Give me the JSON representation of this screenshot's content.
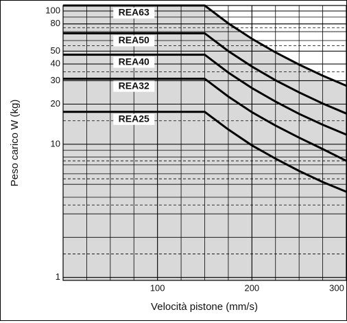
{
  "chart_data": {
    "type": "line",
    "log_y": true,
    "grid": true,
    "y_label": "Peso carico W (kg)",
    "x_label": "Velocità pistone  (mm/s)",
    "x": [
      0,
      150,
      175,
      200,
      225,
      250,
      275,
      300
    ],
    "xlim": [
      0,
      300
    ],
    "xticks": [
      100,
      200,
      300
    ],
    "ylim": [
      0.95,
      110
    ],
    "yticks": [
      1,
      10,
      20,
      30,
      40,
      50,
      80,
      100
    ],
    "fill_color": "#d9d9d9",
    "series": [
      {
        "name": "REA63",
        "color": "#000000",
        "values": [
          110,
          110,
          80.8,
          61.9,
          48.9,
          39.6,
          32.7,
          27.5
        ]
      },
      {
        "name": "REA50",
        "color": "#000000",
        "values": [
          68,
          68,
          50,
          38.3,
          30.2,
          24.5,
          20.2,
          17
        ]
      },
      {
        "name": "REA40",
        "color": "#000000",
        "values": [
          47,
          47,
          34.5,
          26.4,
          20.9,
          16.9,
          14,
          11.8
        ]
      },
      {
        "name": "REA32",
        "color": "#000000",
        "values": [
          31,
          31,
          22.8,
          17.4,
          13.8,
          11.2,
          9.2,
          7.5
        ]
      },
      {
        "name": "REA25",
        "color": "#000000",
        "values": [
          17.5,
          17.5,
          12.9,
          9.8,
          7.8,
          6.3,
          5.2,
          4.4
        ]
      }
    ]
  }
}
